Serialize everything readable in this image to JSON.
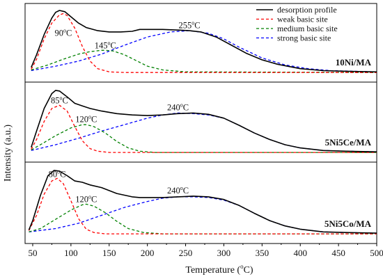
{
  "chart_data": {
    "type": "line",
    "xlabel": "Temperature (°C)",
    "xlabel_main": "Temperature (",
    "xlabel_unit_deg": "o",
    "xlabel_unit_c": "C)",
    "ylabel": "Intensity (a.u.)",
    "xlim": [
      40,
      500
    ],
    "x_ticks": [
      50,
      100,
      150,
      200,
      250,
      300,
      350,
      400,
      450,
      500
    ],
    "x_tick_labels": [
      "50",
      "100",
      "150",
      "200",
      "250",
      "300",
      "350",
      "400",
      "450",
      "500"
    ],
    "legend": {
      "placement": "top-right",
      "entries": [
        {
          "label": "desorption profile",
          "color": "#000000",
          "dash": "solid"
        },
        {
          "label": "weak basic site",
          "color": "#ff0000",
          "dash": "dashed"
        },
        {
          "label": "medium basic site",
          "color": "#008000",
          "dash": "dashed"
        },
        {
          "label": "strong basic site",
          "color": "#0000ff",
          "dash": "dashed"
        }
      ]
    },
    "panels": [
      {
        "sample": "10Ni/MA",
        "series": [
          {
            "name": "desorption profile",
            "x": [
              48,
              55,
              65,
              75,
              80,
              85,
              92,
              100,
              110,
              120,
              135,
              150,
              165,
              180,
              190,
              200,
              220,
              240,
              255,
              270,
              290,
              310,
              330,
              350,
              370,
              400,
              430,
              460,
              500
            ],
            "y": [
              0.1,
              0.3,
              0.62,
              0.88,
              0.97,
              1.0,
              0.98,
              0.9,
              0.8,
              0.73,
              0.68,
              0.66,
              0.66,
              0.67,
              0.7,
              0.7,
              0.7,
              0.69,
              0.68,
              0.66,
              0.58,
              0.45,
              0.32,
              0.22,
              0.15,
              0.08,
              0.05,
              0.04,
              0.03
            ]
          },
          {
            "name": "weak basic site",
            "x": [
              48,
              55,
              65,
              75,
              85,
              90,
              95,
              105,
              115,
              125,
              135,
              150,
              170,
              500
            ],
            "y": [
              0.07,
              0.23,
              0.55,
              0.8,
              0.93,
              0.95,
              0.92,
              0.72,
              0.43,
              0.2,
              0.08,
              0.03,
              0.02,
              0.02
            ]
          },
          {
            "name": "medium basic site",
            "x": [
              48,
              70,
              90,
              110,
              125,
              140,
              145,
              155,
              170,
              185,
              200,
              220,
              250,
              500
            ],
            "y": [
              0.06,
              0.14,
              0.23,
              0.31,
              0.35,
              0.37,
              0.37,
              0.36,
              0.3,
              0.21,
              0.12,
              0.06,
              0.03,
              0.02
            ]
          },
          {
            "name": "strong basic site",
            "x": [
              48,
              80,
              110,
              140,
              170,
              200,
              230,
              255,
              280,
              300,
              320,
              350,
              380,
              410,
              440,
              470,
              500
            ],
            "y": [
              0.05,
              0.12,
              0.2,
              0.31,
              0.45,
              0.58,
              0.66,
              0.68,
              0.64,
              0.55,
              0.42,
              0.25,
              0.14,
              0.08,
              0.05,
              0.04,
              0.03
            ]
          }
        ],
        "peak_labels": [
          {
            "x": 90,
            "y": 0.6,
            "temp": "90",
            "unit_deg": "o",
            "unit_c": "C"
          },
          {
            "x": 145,
            "y": 0.4,
            "temp": "145",
            "unit_deg": "o",
            "unit_c": "C"
          },
          {
            "x": 255,
            "y": 0.72,
            "temp": "255",
            "unit_deg": "o",
            "unit_c": "C"
          }
        ]
      },
      {
        "sample": "5Ni5Ce/MA",
        "series": [
          {
            "name": "desorption profile",
            "x": [
              48,
              55,
              65,
              75,
              80,
              85,
              95,
              105,
              115,
              125,
              140,
              160,
              180,
              200,
              220,
              240,
              260,
              280,
              300,
              320,
              340,
              360,
              380,
              400,
              430,
              460,
              500
            ],
            "y": [
              0.1,
              0.35,
              0.7,
              0.93,
              0.98,
              0.97,
              0.88,
              0.78,
              0.74,
              0.7,
              0.66,
              0.62,
              0.6,
              0.59,
              0.6,
              0.62,
              0.63,
              0.61,
              0.55,
              0.44,
              0.32,
              0.22,
              0.14,
              0.09,
              0.05,
              0.04,
              0.03
            ]
          },
          {
            "name": "weak basic site",
            "x": [
              48,
              55,
              65,
              75,
              85,
              95,
              105,
              115,
              125,
              135,
              150,
              500
            ],
            "y": [
              0.07,
              0.22,
              0.5,
              0.7,
              0.75,
              0.66,
              0.42,
              0.2,
              0.08,
              0.04,
              0.02,
              0.02
            ]
          },
          {
            "name": "medium basic site",
            "x": [
              48,
              60,
              80,
              100,
              115,
              120,
              130,
              145,
              160,
              175,
              190,
              210,
              500
            ],
            "y": [
              0.06,
              0.14,
              0.28,
              0.4,
              0.45,
              0.45,
              0.42,
              0.32,
              0.19,
              0.09,
              0.04,
              0.02,
              0.02
            ]
          },
          {
            "name": "strong basic site",
            "x": [
              48,
              80,
              110,
              140,
              170,
              200,
              220,
              240,
              260,
              280,
              300,
              320,
              340,
              360,
              380,
              400,
              430,
              460,
              500
            ],
            "y": [
              0.05,
              0.14,
              0.24,
              0.35,
              0.45,
              0.55,
              0.6,
              0.63,
              0.62,
              0.6,
              0.55,
              0.44,
              0.32,
              0.22,
              0.14,
              0.09,
              0.05,
              0.04,
              0.03
            ]
          }
        ],
        "peak_labels": [
          {
            "x": 85,
            "y": 0.78,
            "temp": "85",
            "unit_deg": "o",
            "unit_c": "C"
          },
          {
            "x": 120,
            "y": 0.49,
            "temp": "120",
            "unit_deg": "o",
            "unit_c": "C"
          },
          {
            "x": 240,
            "y": 0.67,
            "temp": "240",
            "unit_deg": "o",
            "unit_c": "C"
          }
        ]
      },
      {
        "sample": "5Ni5Co/MA",
        "series": [
          {
            "name": "desorption profile",
            "x": [
              45,
              50,
              60,
              70,
              78,
              85,
              95,
              105,
              115,
              125,
              140,
              160,
              180,
              190,
              200,
              220,
              240,
              260,
              280,
              300,
              320,
              340,
              360,
              380,
              400,
              430,
              460,
              500
            ],
            "y": [
              0.08,
              0.22,
              0.6,
              0.9,
              0.98,
              0.97,
              0.9,
              0.82,
              0.8,
              0.76,
              0.72,
              0.63,
              0.58,
              0.57,
              0.57,
              0.57,
              0.58,
              0.59,
              0.58,
              0.54,
              0.45,
              0.33,
              0.22,
              0.14,
              0.09,
              0.05,
              0.04,
              0.03
            ]
          },
          {
            "name": "weak basic site",
            "x": [
              45,
              55,
              65,
              75,
              82,
              90,
              100,
              110,
              120,
              130,
              145,
              500
            ],
            "y": [
              0.07,
              0.3,
              0.62,
              0.82,
              0.86,
              0.78,
              0.52,
              0.25,
              0.09,
              0.04,
              0.02,
              0.02
            ]
          },
          {
            "name": "medium basic site",
            "x": [
              45,
              60,
              80,
              100,
              115,
              120,
              130,
              145,
              160,
              175,
              195,
              220,
              500
            ],
            "y": [
              0.05,
              0.1,
              0.24,
              0.38,
              0.46,
              0.47,
              0.44,
              0.34,
              0.21,
              0.1,
              0.04,
              0.02,
              0.02
            ]
          },
          {
            "name": "strong basic site",
            "x": [
              45,
              80,
              110,
              140,
              170,
              200,
              220,
              240,
              260,
              280,
              300,
              320,
              340,
              360,
              380,
              400,
              430,
              460,
              500
            ],
            "y": [
              0.05,
              0.1,
              0.18,
              0.3,
              0.42,
              0.51,
              0.56,
              0.58,
              0.58,
              0.57,
              0.53,
              0.45,
              0.33,
              0.22,
              0.14,
              0.09,
              0.05,
              0.04,
              0.03
            ]
          }
        ],
        "peak_labels": [
          {
            "x": 82,
            "y": 0.88,
            "temp": "80",
            "unit_deg": "o",
            "unit_c": "C"
          },
          {
            "x": 120,
            "y": 0.5,
            "temp": "120",
            "unit_deg": "o",
            "unit_c": "C"
          },
          {
            "x": 240,
            "y": 0.63,
            "temp": "240",
            "unit_deg": "o",
            "unit_c": "C"
          }
        ]
      }
    ]
  }
}
